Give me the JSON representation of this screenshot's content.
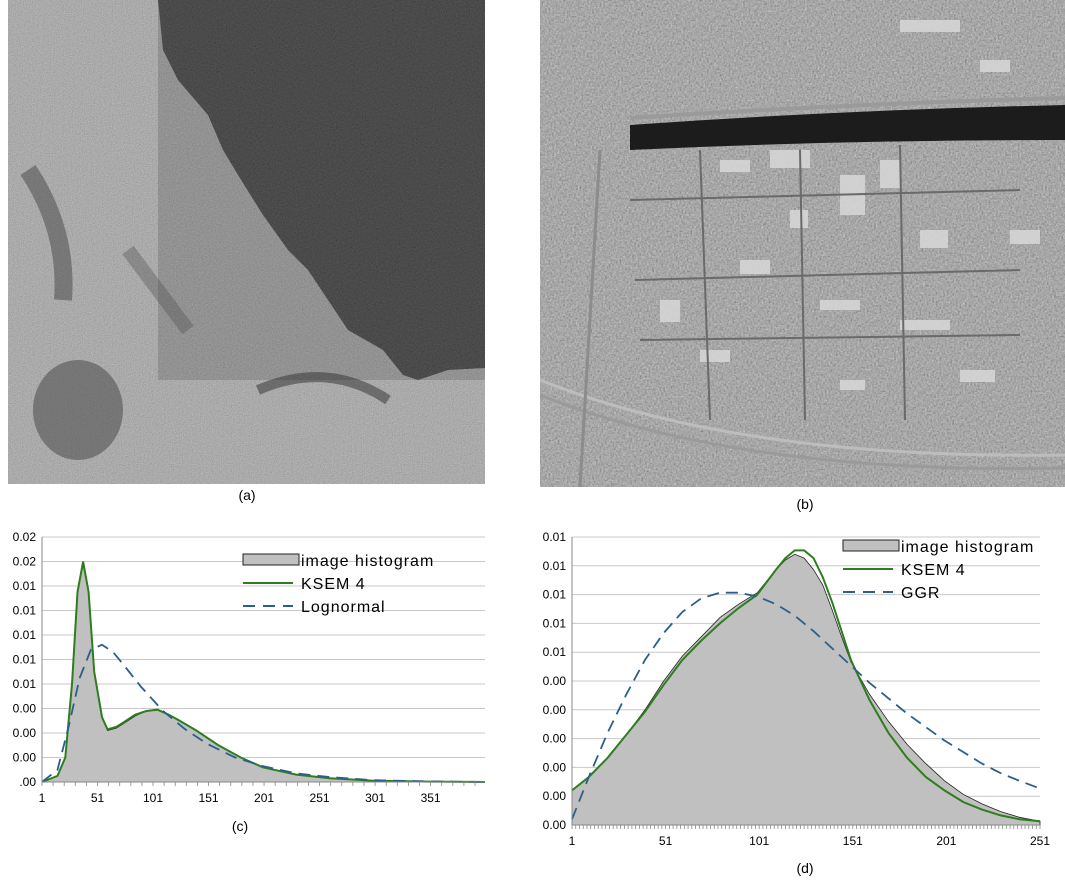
{
  "panels": {
    "a": {
      "caption": "(a)",
      "description": "grayscale SAR image: textured land with dark water region at top-right"
    },
    "b": {
      "caption": "(b)",
      "description": "grayscale aerial image of an industrial area with canal and roads"
    },
    "c": {
      "caption": "(c)"
    },
    "d": {
      "caption": "(d)"
    }
  },
  "chart_data": [
    {
      "type": "area",
      "panel": "c",
      "xlim": [
        1,
        400
      ],
      "ylim": [
        0,
        0.02
      ],
      "x_ticks": [
        "1",
        "51",
        "101",
        "151",
        "201",
        "251",
        "301",
        "351"
      ],
      "x_tick_values": [
        1,
        51,
        101,
        151,
        201,
        251,
        301,
        351
      ],
      "y_ticks": [
        ".00",
        "0.00",
        "0.00",
        "0.00",
        "0.01",
        "0.01",
        "0.01",
        "0.01",
        "0.01",
        "0.02",
        "0.02"
      ],
      "grid": true,
      "legend_position": "top-right",
      "series": [
        {
          "name": "image histogram",
          "style": "area",
          "color": "#c0c0c0",
          "x": [
            1,
            15,
            22,
            28,
            33,
            38,
            43,
            48,
            55,
            60,
            68,
            75,
            85,
            95,
            105,
            115,
            125,
            140,
            160,
            180,
            200,
            230,
            260,
            300,
            350,
            400
          ],
          "y": [
            0.0,
            0.0005,
            0.002,
            0.008,
            0.0155,
            0.0177,
            0.0155,
            0.009,
            0.0052,
            0.0042,
            0.0044,
            0.0048,
            0.0054,
            0.0058,
            0.0059,
            0.0055,
            0.005,
            0.0042,
            0.003,
            0.002,
            0.0012,
            0.0006,
            0.0003,
            0.0001,
            3e-05,
            0.0
          ]
        },
        {
          "name": "KSEM 4",
          "style": "line",
          "color": "#2e7d1e",
          "x": [
            1,
            15,
            22,
            28,
            33,
            38,
            43,
            48,
            55,
            60,
            68,
            75,
            85,
            95,
            105,
            115,
            125,
            140,
            160,
            180,
            200,
            230,
            260,
            300,
            350,
            400
          ],
          "y": [
            0.0,
            0.0005,
            0.002,
            0.008,
            0.0155,
            0.018,
            0.0155,
            0.009,
            0.0053,
            0.0043,
            0.0045,
            0.0049,
            0.0055,
            0.0058,
            0.0059,
            0.0055,
            0.005,
            0.0042,
            0.003,
            0.002,
            0.0012,
            0.0006,
            0.0003,
            0.0001,
            3e-05,
            0.0
          ]
        },
        {
          "name": "Lognormal",
          "style": "dashed",
          "color": "#2b5f8a",
          "x": [
            1,
            15,
            25,
            35,
            45,
            55,
            65,
            75,
            90,
            110,
            130,
            150,
            175,
            200,
            230,
            260,
            300,
            350,
            400
          ],
          "y": [
            0.0,
            0.001,
            0.0045,
            0.0085,
            0.0108,
            0.0112,
            0.0106,
            0.0095,
            0.0078,
            0.0058,
            0.0043,
            0.0031,
            0.002,
            0.0013,
            0.0007,
            0.0004,
            0.00015,
            5e-05,
            0.0
          ]
        }
      ]
    },
    {
      "type": "area",
      "panel": "d",
      "xlim": [
        1,
        251
      ],
      "ylim": [
        0,
        0.015
      ],
      "x_ticks": [
        "1",
        "51",
        "101",
        "151",
        "201",
        "251"
      ],
      "x_tick_values": [
        1,
        51,
        101,
        151,
        201,
        251
      ],
      "y_ticks": [
        "0.00",
        "0.00",
        "0.00",
        "0.00",
        "0.00",
        "0.00",
        "0.01",
        "0.01",
        "0.01",
        "0.01",
        "0.01"
      ],
      "grid": true,
      "legend_position": "top-right",
      "series": [
        {
          "name": "image histogram",
          "style": "area",
          "color": "#c0c0c0",
          "x": [
            1,
            10,
            20,
            30,
            40,
            50,
            60,
            70,
            80,
            90,
            100,
            110,
            115,
            120,
            125,
            130,
            135,
            140,
            145,
            150,
            160,
            170,
            180,
            190,
            200,
            210,
            220,
            230,
            240,
            251
          ],
          "y": [
            0.0018,
            0.0025,
            0.0035,
            0.0047,
            0.006,
            0.0075,
            0.0088,
            0.0098,
            0.0108,
            0.0115,
            0.0121,
            0.0133,
            0.0138,
            0.0141,
            0.0139,
            0.0133,
            0.0125,
            0.0112,
            0.0098,
            0.0085,
            0.0068,
            0.0054,
            0.0042,
            0.0032,
            0.0023,
            0.0016,
            0.0011,
            0.0007,
            0.0004,
            0.0002
          ]
        },
        {
          "name": "KSEM 4",
          "style": "line",
          "color": "#2e7d1e",
          "x": [
            1,
            10,
            20,
            30,
            40,
            50,
            60,
            70,
            80,
            90,
            100,
            110,
            115,
            120,
            125,
            130,
            135,
            140,
            145,
            150,
            160,
            170,
            180,
            190,
            200,
            210,
            220,
            230,
            240,
            251
          ],
          "y": [
            0.0018,
            0.0025,
            0.0035,
            0.0047,
            0.0059,
            0.0073,
            0.0086,
            0.0096,
            0.0105,
            0.0113,
            0.012,
            0.0133,
            0.0139,
            0.0143,
            0.0143,
            0.0139,
            0.0129,
            0.0116,
            0.0101,
            0.0086,
            0.0065,
            0.0048,
            0.0035,
            0.0025,
            0.0018,
            0.0012,
            0.0008,
            0.0005,
            0.0003,
            0.0002
          ]
        },
        {
          "name": "GGR",
          "style": "dashed",
          "color": "#2b5f8a",
          "x": [
            1,
            10,
            20,
            30,
            40,
            50,
            60,
            70,
            80,
            90,
            100,
            110,
            120,
            130,
            140,
            150,
            160,
            170,
            180,
            190,
            200,
            210,
            220,
            230,
            240,
            251
          ],
          "y": [
            0.0003,
            0.0025,
            0.0048,
            0.0068,
            0.0086,
            0.01,
            0.0111,
            0.0118,
            0.0121,
            0.0121,
            0.0119,
            0.0115,
            0.0109,
            0.0101,
            0.0092,
            0.0083,
            0.0074,
            0.0066,
            0.0058,
            0.0051,
            0.0044,
            0.0038,
            0.0032,
            0.0027,
            0.0023,
            0.0019
          ]
        }
      ]
    }
  ]
}
